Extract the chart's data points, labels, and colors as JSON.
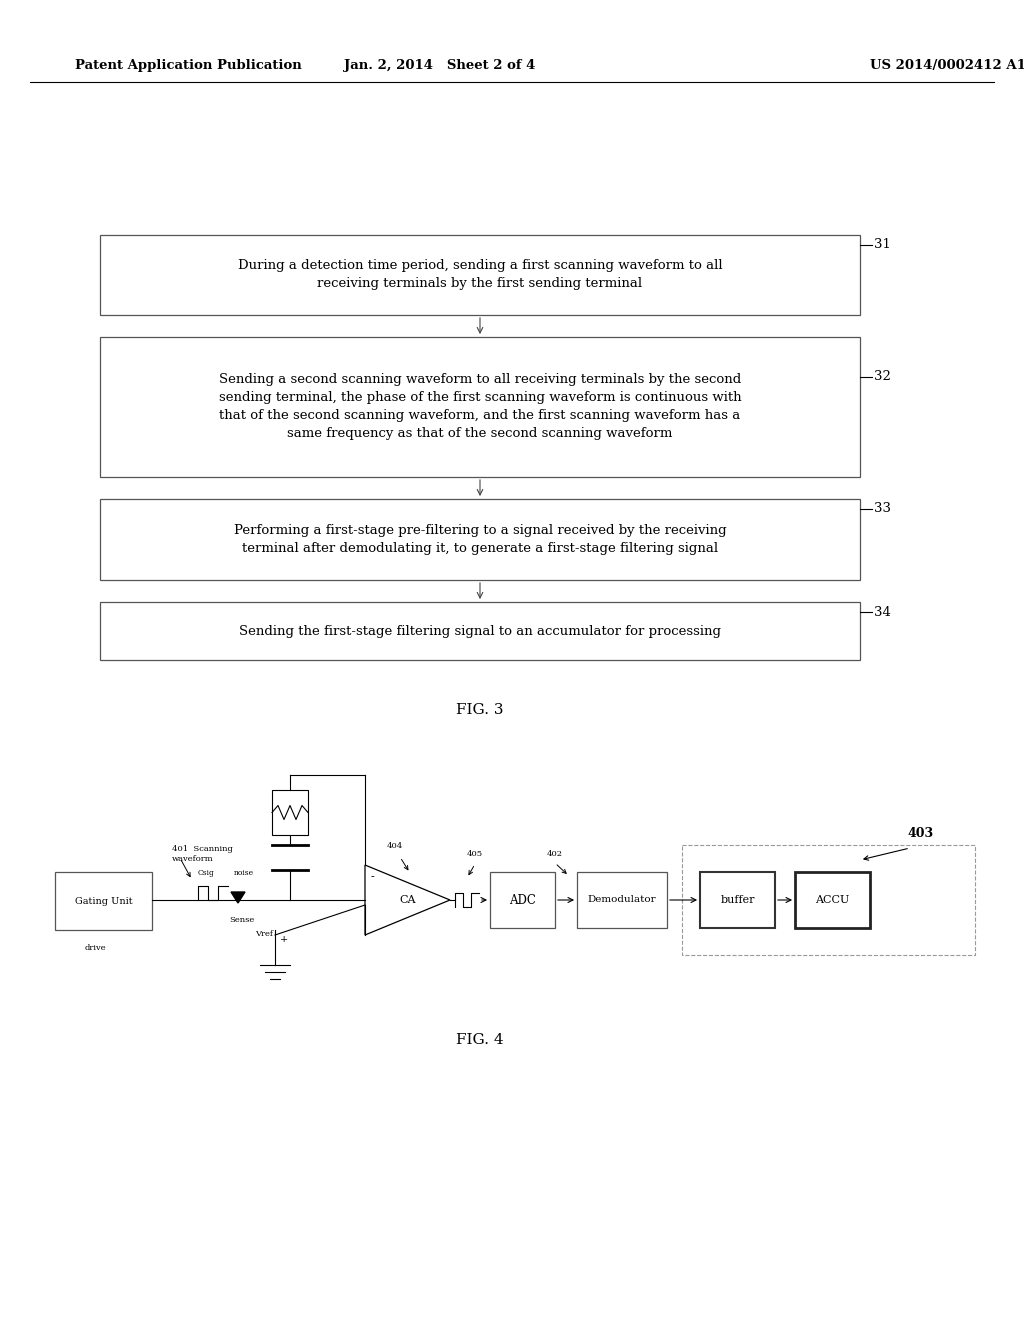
{
  "bg_color": "#ffffff",
  "header_left": "Patent Application Publication",
  "header_mid": "Jan. 2, 2014   Sheet 2 of 4",
  "header_right": "US 2014/0002412 A1",
  "fig3_label": "FIG. 3",
  "fig4_label": "FIG. 4",
  "box31_text": "During a detection time period, sending a first scanning waveform to all\nreceiving terminals by the first sending terminal",
  "box32_text": "Sending a second scanning waveform to all receiving terminals by the second\nsending terminal, the phase of the first scanning waveform is continuous with\nthat of the second scanning waveform, and the first scanning waveform has a\nsame frequency as that of the second scanning waveform",
  "box33_text": "Performing a first-stage pre-filtering to a signal received by the receiving\nterminal after demodulating it, to generate a first-stage filtering signal",
  "box34_text": "Sending the first-stage filtering signal to an accumulator for processing",
  "label31": "31",
  "label32": "32",
  "label33": "33",
  "label34": "34",
  "label401": "401  Scanning\nwaveform",
  "label_csig": "Csig",
  "label_noise": "noise",
  "label_drive": "drive",
  "label_sense": "Sense",
  "label_vref": "Vref",
  "label_CA": "CA",
  "label404": "404",
  "label405": "405",
  "label402": "402",
  "label403": "403",
  "label_ADC": "ADC",
  "label_Demodulator": "Demodulator",
  "label_buffer": "buffer",
  "label_ACCU": "ACCU",
  "label_GatingUnit": "Gating Unit"
}
